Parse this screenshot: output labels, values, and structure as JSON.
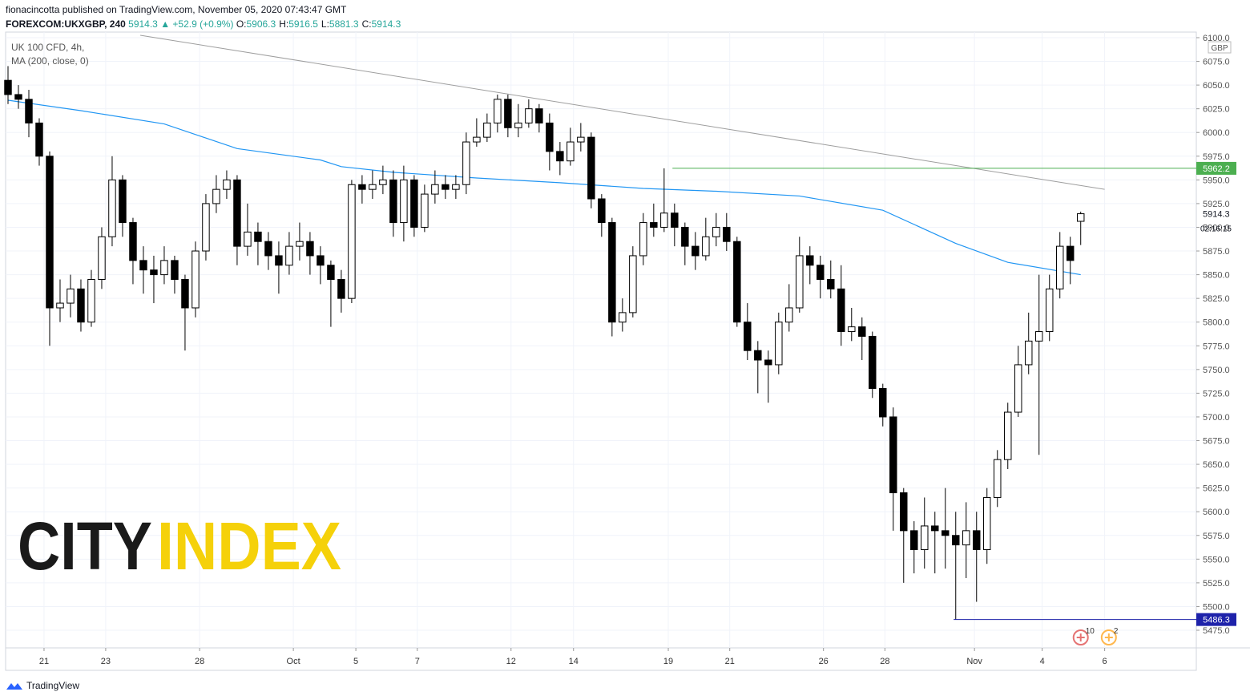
{
  "header": {
    "publisher": "fionacincotta published on TradingView.com, November 05, 2020 07:43:47 GMT",
    "symbol": "FOREXCOM:UKXGBP, 240",
    "last": "5914.3",
    "change": "▲ +52.9 (+0.9%)",
    "ohlc": [
      {
        "key": "O:",
        "value": "5906.3"
      },
      {
        "key": "H:",
        "value": "5916.5"
      },
      {
        "key": "L:",
        "value": "5881.3"
      },
      {
        "key": "C:",
        "value": "5914.3"
      }
    ]
  },
  "footer": {
    "brand": "TradingView"
  },
  "watermark": {
    "left": "CITY",
    "right": "INDEX"
  },
  "chart_data": {
    "type": "candlestick",
    "title": "UK 100 CFD, 4h,",
    "currency": "GBP",
    "countdown": "02:16:15",
    "up_color": "#ffffff",
    "down_color": "#000000",
    "grid": true,
    "xlim": [
      -0.23,
      114.1
    ],
    "xticks": [
      {
        "value": 3.46,
        "label": "21"
      },
      {
        "value": 9.38,
        "label": "23"
      },
      {
        "value": 18.4,
        "label": "28"
      },
      {
        "value": 27.4,
        "label": "Oct"
      },
      {
        "value": 33.4,
        "label": "5"
      },
      {
        "value": 39.3,
        "label": "7"
      },
      {
        "value": 48.3,
        "label": "12"
      },
      {
        "value": 54.3,
        "label": "14"
      },
      {
        "value": 63.4,
        "label": "19"
      },
      {
        "value": 69.3,
        "label": "21"
      },
      {
        "value": 78.3,
        "label": "26"
      },
      {
        "value": 84.2,
        "label": "28"
      },
      {
        "value": 92.8,
        "label": "Nov"
      },
      {
        "value": 99.3,
        "label": "4"
      },
      {
        "value": 105.3,
        "label": "6"
      }
    ],
    "ylim": [
      5456.4,
      6105.9
    ],
    "yticks": [
      {
        "value": 5475,
        "label": "5475.0"
      },
      {
        "value": 5500,
        "label": "5500.0"
      },
      {
        "value": 5525,
        "label": "5525.0"
      },
      {
        "value": 5550,
        "label": "5550.0"
      },
      {
        "value": 5575,
        "label": "5575.0"
      },
      {
        "value": 5600,
        "label": "5600.0"
      },
      {
        "value": 5625,
        "label": "5625.0"
      },
      {
        "value": 5650,
        "label": "5650.0"
      },
      {
        "value": 5675,
        "label": "5675.0"
      },
      {
        "value": 5700,
        "label": "5700.0"
      },
      {
        "value": 5725,
        "label": "5725.0"
      },
      {
        "value": 5750,
        "label": "5750.0"
      },
      {
        "value": 5775,
        "label": "5775.0"
      },
      {
        "value": 5800,
        "label": "5800.0"
      },
      {
        "value": 5825,
        "label": "5825.0"
      },
      {
        "value": 5850,
        "label": "5850.0"
      },
      {
        "value": 5875,
        "label": "5875.0"
      },
      {
        "value": 5900,
        "label": "5900.0"
      },
      {
        "value": 5925,
        "label": "5925.0"
      },
      {
        "value": 5950,
        "label": "5950.0"
      },
      {
        "value": 5975,
        "label": "5975.0"
      },
      {
        "value": 6000,
        "label": "6000.0"
      },
      {
        "value": 6025,
        "label": "6025.0"
      },
      {
        "value": 6050,
        "label": "6050.0"
      },
      {
        "value": 6075,
        "label": "6075.0"
      },
      {
        "value": 6100,
        "label": "6100.0"
      }
    ],
    "open": [
      6055,
      6040,
      6035,
      6010,
      5975,
      5815,
      5820,
      5835,
      5800,
      5845,
      5890,
      5950,
      5905,
      5865,
      5855,
      5850,
      5865,
      5845,
      5815,
      5875,
      5925,
      5940,
      5950,
      5880,
      5895,
      5885,
      5870,
      5860,
      5880,
      5885,
      5870,
      5860,
      5845,
      5825,
      5945,
      5940,
      5945,
      5950,
      5905,
      5950,
      5900,
      5935,
      5945,
      5940,
      5945,
      5990,
      5995,
      6010,
      6035,
      6005,
      6010,
      6025,
      6010,
      5980,
      5970,
      5990,
      5995,
      5930,
      5905,
      5800,
      5810,
      5870,
      5905,
      5900,
      5915,
      5900,
      5880,
      5870,
      5890,
      5900,
      5885,
      5800,
      5770,
      5760,
      5755,
      5800,
      5815,
      5870,
      5860,
      5845,
      5835,
      5790,
      5795,
      5785,
      5730,
      5700,
      5620,
      5580,
      5560,
      5585,
      5580,
      5575,
      5565,
      5580,
      5560,
      5615,
      5655,
      5705,
      5755,
      5780,
      5790,
      5835,
      5880,
      5906.3
    ],
    "high": [
      6070,
      6050,
      6045,
      6015,
      5980,
      5845,
      5850,
      5845,
      5855,
      5900,
      5975,
      5955,
      5910,
      5880,
      5870,
      5880,
      5870,
      5850,
      5885,
      5935,
      5955,
      5960,
      5955,
      5925,
      5905,
      5895,
      5885,
      5895,
      5905,
      5895,
      5880,
      5865,
      5855,
      5950,
      5955,
      5960,
      5965,
      5960,
      5965,
      5955,
      5945,
      5960,
      5955,
      5955,
      6000,
      6015,
      6020,
      6040,
      6040,
      6030,
      6035,
      6030,
      6020,
      5990,
      6005,
      6010,
      6000,
      5935,
      5910,
      5825,
      5880,
      5915,
      5925,
      5962.2,
      5925,
      5905,
      5895,
      5910,
      5915,
      5915,
      5890,
      5820,
      5780,
      5770,
      5810,
      5840,
      5890,
      5880,
      5870,
      5865,
      5860,
      5815,
      5805,
      5790,
      5735,
      5710,
      5625,
      5590,
      5615,
      5600,
      5625,
      5600,
      5610,
      5600,
      5625,
      5665,
      5715,
      5775,
      5810,
      5850,
      5850,
      5895,
      5890,
      5916.5
    ],
    "low": [
      6030,
      6025,
      5995,
      5965,
      5775,
      5800,
      5805,
      5790,
      5795,
      5835,
      5880,
      5890,
      5840,
      5830,
      5820,
      5840,
      5830,
      5770,
      5805,
      5865,
      5915,
      5930,
      5860,
      5870,
      5860,
      5855,
      5830,
      5850,
      5865,
      5850,
      5840,
      5795,
      5810,
      5820,
      5925,
      5930,
      5935,
      5890,
      5885,
      5890,
      5895,
      5925,
      5930,
      5930,
      5935,
      5985,
      5990,
      6000,
      5995,
      5995,
      6005,
      6000,
      5960,
      5955,
      5965,
      5980,
      5920,
      5890,
      5785,
      5790,
      5805,
      5860,
      5890,
      5895,
      5880,
      5860,
      5855,
      5865,
      5880,
      5875,
      5795,
      5760,
      5725,
      5715,
      5745,
      5790,
      5810,
      5840,
      5825,
      5825,
      5775,
      5780,
      5760,
      5720,
      5690,
      5580,
      5525,
      5535,
      5540,
      5535,
      5540,
      5486.3,
      5530,
      5505,
      5545,
      5605,
      5645,
      5700,
      5745,
      5660,
      5780,
      5825,
      5840,
      5881.3
    ],
    "close": [
      6040,
      6035,
      6010,
      5975,
      5815,
      5820,
      5835,
      5800,
      5845,
      5890,
      5950,
      5905,
      5865,
      5855,
      5850,
      5865,
      5845,
      5815,
      5875,
      5925,
      5940,
      5950,
      5880,
      5895,
      5885,
      5870,
      5860,
      5880,
      5885,
      5870,
      5860,
      5845,
      5825,
      5945,
      5940,
      5945,
      5950,
      5905,
      5950,
      5900,
      5935,
      5945,
      5940,
      5945,
      5990,
      5995,
      6010,
      6035,
      6005,
      6010,
      6025,
      6010,
      5980,
      5970,
      5990,
      5995,
      5930,
      5905,
      5800,
      5810,
      5870,
      5905,
      5900,
      5915,
      5900,
      5880,
      5870,
      5890,
      5900,
      5885,
      5800,
      5770,
      5760,
      5755,
      5800,
      5815,
      5870,
      5860,
      5845,
      5835,
      5790,
      5795,
      5785,
      5730,
      5700,
      5620,
      5580,
      5560,
      5585,
      5580,
      5575,
      5565,
      5580,
      5560,
      5615,
      5655,
      5705,
      5755,
      5780,
      5790,
      5835,
      5880,
      5865,
      5914.3
    ],
    "ma": {
      "name": "MA (200, close, 0)",
      "color": "#2196f3",
      "x": [
        0,
        7,
        15,
        22,
        30,
        32,
        37,
        45,
        53,
        61,
        68,
        76,
        84,
        91,
        96,
        103
      ],
      "values": [
        6034,
        6023,
        6009,
        5983,
        5971,
        5964,
        5958,
        5952,
        5947,
        5941,
        5938,
        5933,
        5918,
        5883,
        5863,
        5850
      ]
    },
    "trendline": {
      "color": "#9e9e9e",
      "x": [
        12.7,
        105.3
      ],
      "values": [
        6102.5,
        5940
      ]
    },
    "levels": [
      {
        "value": 5962.2,
        "start": 63.8,
        "color": "#4caf50"
      },
      {
        "value": 5486.3,
        "start": 90.8,
        "color": "#1e22aa"
      }
    ],
    "events": [
      {
        "x": 103,
        "label": "10",
        "color": "#e57373"
      },
      {
        "x": 105.7,
        "label": "2",
        "color": "#ffb74d"
      }
    ]
  }
}
